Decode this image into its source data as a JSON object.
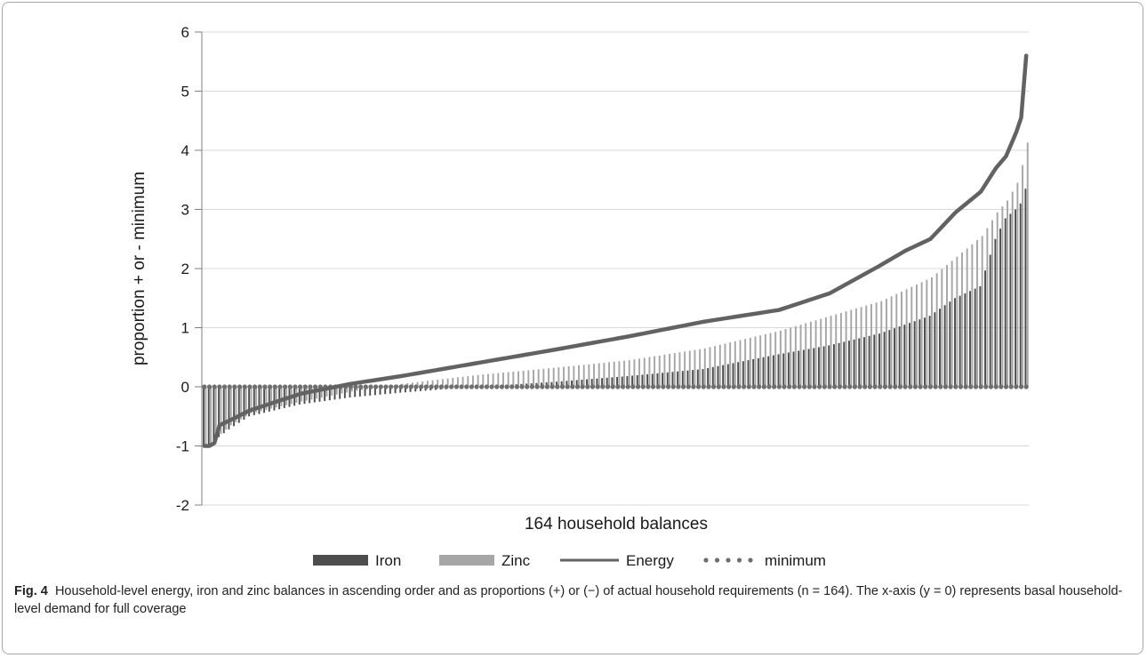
{
  "caption": {
    "label": "Fig. 4",
    "text": "Household-level energy, iron and zinc balances in ascending order and as proportions (+) or (−) of actual household requirements (n = 164). The x-axis (y = 0) represents basal household-level demand for full coverage"
  },
  "colors": {
    "iron": "#4d4d4d",
    "zinc": "#a6a6a6",
    "energy": "#626262",
    "minimum": "#6e6e6e",
    "grid": "#d9d9d9",
    "axis": "#7f7f7f"
  },
  "chart_data": {
    "type": "bar",
    "xlabel": "164 household balances",
    "ylabel": "proportion + or - minimum",
    "ylim": [
      -2,
      6
    ],
    "yticks": [
      "-2",
      "-1",
      "0",
      "1",
      "2",
      "3",
      "4",
      "5",
      "6"
    ],
    "household_count": 164,
    "grid": true,
    "legend_position": "bottom",
    "legend": [
      {
        "key": "iron",
        "label": "Iron",
        "style": "bar"
      },
      {
        "key": "zinc",
        "label": "Zinc",
        "style": "bar"
      },
      {
        "key": "energy",
        "label": "Energy",
        "style": "line"
      },
      {
        "key": "minimum",
        "label": "minimum",
        "style": "dots"
      }
    ],
    "series_control_points": {
      "index": [
        1,
        2,
        3,
        4,
        6,
        10,
        20,
        30,
        40,
        55,
        70,
        85,
        100,
        115,
        125,
        135,
        140,
        145,
        150,
        155,
        158,
        160,
        162,
        163,
        164
      ],
      "energy": [
        -1.0,
        -1.0,
        -0.95,
        -0.65,
        -0.57,
        -0.4,
        -0.12,
        0.05,
        0.18,
        0.4,
        0.62,
        0.85,
        1.1,
        1.3,
        1.58,
        2.05,
        2.3,
        2.5,
        2.95,
        3.3,
        3.7,
        3.9,
        4.3,
        4.55,
        5.6
      ],
      "iron": [
        -1.0,
        -0.98,
        -0.95,
        -0.85,
        -0.72,
        -0.5,
        -0.3,
        -0.18,
        -0.1,
        0.0,
        0.08,
        0.18,
        0.3,
        0.55,
        0.7,
        0.9,
        1.05,
        1.2,
        1.5,
        1.7,
        2.5,
        2.85,
        3.0,
        3.1,
        3.35
      ],
      "zinc": [
        -1.0,
        -0.95,
        -0.9,
        -0.8,
        -0.65,
        -0.45,
        -0.25,
        -0.08,
        0.05,
        0.2,
        0.32,
        0.45,
        0.65,
        0.95,
        1.2,
        1.45,
        1.65,
        1.85,
        2.2,
        2.55,
        2.95,
        3.15,
        3.45,
        3.75,
        4.13
      ]
    },
    "minimum_value": 0
  }
}
